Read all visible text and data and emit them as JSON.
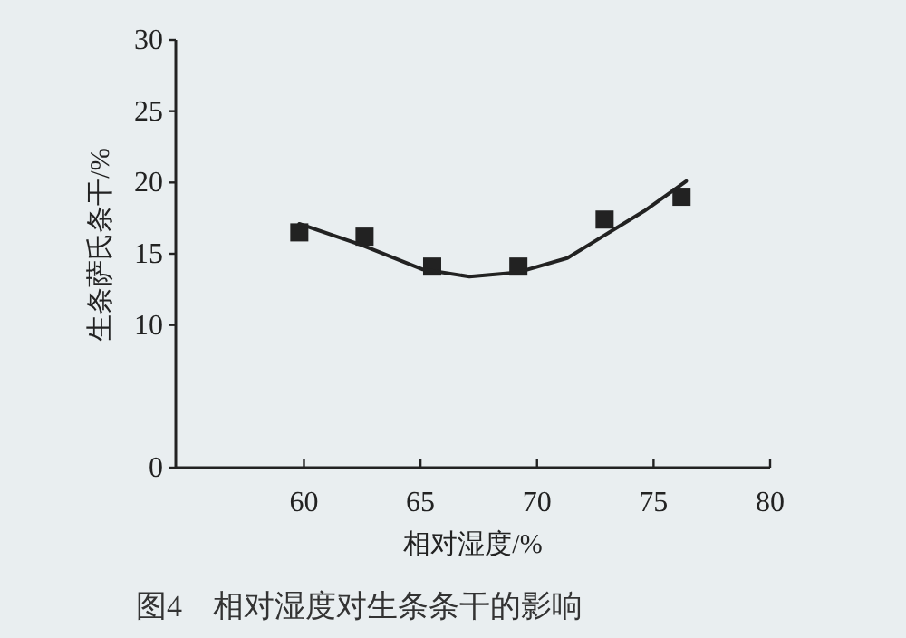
{
  "chart_data": {
    "type": "scatter",
    "xlabel": "相对湿度/%",
    "ylabel": "生条萨氏条干/%",
    "annotations": [
      "图4　相对湿度对生条条干的影响"
    ],
    "xlim": [
      54.5,
      80
    ],
    "xticks": [
      60,
      65,
      70,
      75,
      80
    ],
    "ylim": [
      0,
      30
    ],
    "yticks": [
      0,
      10,
      15,
      20,
      25,
      30
    ],
    "grid": false,
    "legend": false,
    "series": [
      {
        "type": "scatter",
        "color": "#222222",
        "marker": "square",
        "x": [
          59.8,
          62.6,
          65.5,
          69.2,
          72.9,
          76.2
        ],
        "values": [
          16.5,
          16.2,
          14.1,
          14.1,
          17.4,
          19.0
        ]
      },
      {
        "type": "line",
        "color": "#222222",
        "marker": "none",
        "line_style": "solid",
        "x": [
          59.8,
          62.5,
          65.1,
          67.1,
          69.2,
          71.3,
          72.8,
          74.6,
          76.4
        ],
        "values": [
          17.1,
          15.6,
          13.9,
          13.4,
          13.7,
          14.7,
          16.2,
          18.0,
          20.1
        ]
      }
    ]
  }
}
